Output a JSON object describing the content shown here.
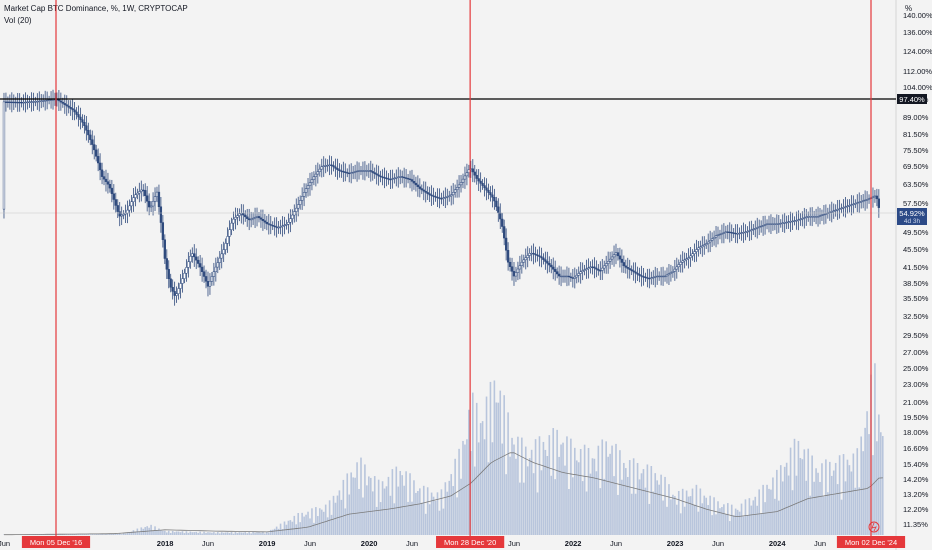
{
  "header": {
    "title": "Market Cap BTC Dominance, %, 1W, CRYPTOCAP",
    "indicator": "Vol (20)",
    "scale_unit": "%"
  },
  "colors": {
    "background": "#f3f3f3",
    "candle": "#2f4a7d",
    "volume": "#b8c5dc",
    "volume_ma": "#7a7a7a",
    "marker_line": "#e5383b",
    "level_line": "#000000",
    "current_price": "#2c4a87"
  },
  "chart_data": {
    "type": "line",
    "title": "Market Cap BTC Dominance, %, 1W, CRYPTOCAP",
    "y_scale": "log",
    "y_ticks": [
      "140.00%",
      "136.00%",
      "124.00%",
      "112.00%",
      "104.00%",
      "97.40%",
      "89.00%",
      "81.50%",
      "75.50%",
      "69.50%",
      "63.50%",
      "57.50%",
      "49.50%",
      "45.50%",
      "41.50%",
      "38.50%",
      "35.50%",
      "32.50%",
      "29.50%",
      "27.00%",
      "25.00%",
      "23.00%",
      "21.00%",
      "19.50%",
      "18.00%",
      "16.60%",
      "15.40%",
      "14.20%",
      "13.20%",
      "12.20%",
      "11.35%"
    ],
    "x_ticks": [
      "Jun",
      "2018",
      "Jun",
      "2019",
      "Jun",
      "2020",
      "Jun",
      "Jun",
      "2022",
      "Jun",
      "2023",
      "Jun",
      "2024",
      "Jun"
    ],
    "x_tick_dates": [
      2016.42,
      2018.0,
      2018.42,
      2019.0,
      2019.42,
      2020.0,
      2020.42,
      2021.42,
      2022.0,
      2022.42,
      2023.0,
      2023.42,
      2024.0,
      2024.42
    ],
    "x_range": [
      2016.42,
      2025.05
    ],
    "series": [
      {
        "values": [
          [
            2016.42,
            96.0
          ],
          [
            2016.6,
            95.8
          ],
          [
            2016.75,
            96.3
          ],
          [
            2016.93,
            97.4
          ],
          [
            2017.1,
            92
          ],
          [
            2017.2,
            86
          ],
          [
            2017.3,
            76
          ],
          [
            2017.38,
            66
          ],
          [
            2017.45,
            63
          ],
          [
            2017.55,
            54
          ],
          [
            2017.62,
            55
          ],
          [
            2017.7,
            60
          ],
          [
            2017.78,
            62
          ],
          [
            2017.85,
            56
          ],
          [
            2017.92,
            61
          ],
          [
            2018.0,
            43
          ],
          [
            2018.05,
            38
          ],
          [
            2018.1,
            36
          ],
          [
            2018.18,
            40
          ],
          [
            2018.26,
            45
          ],
          [
            2018.34,
            42
          ],
          [
            2018.42,
            38
          ],
          [
            2018.5,
            42
          ],
          [
            2018.58,
            46
          ],
          [
            2018.66,
            53
          ],
          [
            2018.74,
            55
          ],
          [
            2018.82,
            53
          ],
          [
            2018.9,
            54
          ],
          [
            2019.0,
            52
          ],
          [
            2019.1,
            51
          ],
          [
            2019.2,
            52
          ],
          [
            2019.3,
            57
          ],
          [
            2019.38,
            62
          ],
          [
            2019.46,
            66
          ],
          [
            2019.54,
            69.5
          ],
          [
            2019.62,
            70
          ],
          [
            2019.7,
            68
          ],
          [
            2019.8,
            67
          ],
          [
            2019.9,
            68
          ],
          [
            2020.0,
            68
          ],
          [
            2020.1,
            66
          ],
          [
            2020.2,
            65
          ],
          [
            2020.3,
            66
          ],
          [
            2020.4,
            65
          ],
          [
            2020.5,
            62
          ],
          [
            2020.6,
            60
          ],
          [
            2020.7,
            59
          ],
          [
            2020.8,
            60
          ],
          [
            2020.9,
            64
          ],
          [
            2020.99,
            69
          ],
          [
            2021.06,
            65
          ],
          [
            2021.14,
            62
          ],
          [
            2021.22,
            59
          ],
          [
            2021.3,
            52
          ],
          [
            2021.36,
            43
          ],
          [
            2021.42,
            40
          ],
          [
            2021.5,
            43
          ],
          [
            2021.58,
            45
          ],
          [
            2021.68,
            44
          ],
          [
            2021.78,
            42
          ],
          [
            2021.86,
            40
          ],
          [
            2021.94,
            40
          ],
          [
            2022.0,
            39.5
          ],
          [
            2022.08,
            41
          ],
          [
            2022.18,
            42
          ],
          [
            2022.26,
            41
          ],
          [
            2022.34,
            43
          ],
          [
            2022.42,
            45
          ],
          [
            2022.5,
            42
          ],
          [
            2022.58,
            41
          ],
          [
            2022.66,
            40
          ],
          [
            2022.74,
            39.5
          ],
          [
            2022.82,
            40
          ],
          [
            2022.9,
            40
          ],
          [
            2022.98,
            41
          ],
          [
            2023.06,
            43
          ],
          [
            2023.14,
            44
          ],
          [
            2023.22,
            46
          ],
          [
            2023.3,
            47
          ],
          [
            2023.4,
            49
          ],
          [
            2023.5,
            50
          ],
          [
            2023.6,
            49.5
          ],
          [
            2023.7,
            50
          ],
          [
            2023.8,
            51
          ],
          [
            2023.9,
            52
          ],
          [
            2024.0,
            52
          ],
          [
            2024.1,
            52.5
          ],
          [
            2024.2,
            53
          ],
          [
            2024.3,
            54
          ],
          [
            2024.4,
            54
          ],
          [
            2024.5,
            55
          ],
          [
            2024.6,
            56
          ],
          [
            2024.7,
            57
          ],
          [
            2024.8,
            58
          ],
          [
            2024.9,
            59
          ],
          [
            2024.97,
            60
          ],
          [
            2025.0,
            56
          ]
        ]
      }
    ],
    "volume": {
      "y_ticks_note": "volume pane shares right scale region",
      "values": [
        [
          2016.42,
          0.05
        ],
        [
          2016.8,
          0.08
        ],
        [
          2017.2,
          0.15
        ],
        [
          2017.6,
          0.5
        ],
        [
          2017.85,
          3
        ],
        [
          2018.0,
          1.2
        ],
        [
          2018.5,
          0.8
        ],
        [
          2019.0,
          0.9
        ],
        [
          2019.3,
          6
        ],
        [
          2019.6,
          9
        ],
        [
          2019.9,
          22
        ],
        [
          2020.1,
          15
        ],
        [
          2020.3,
          20
        ],
        [
          2020.5,
          14
        ],
        [
          2020.7,
          12
        ],
        [
          2020.9,
          25
        ],
        [
          2021.0,
          40
        ],
        [
          2021.1,
          35
        ],
        [
          2021.25,
          47
        ],
        [
          2021.4,
          30
        ],
        [
          2021.55,
          25
        ],
        [
          2021.7,
          28
        ],
        [
          2021.85,
          30
        ],
        [
          2022.0,
          26
        ],
        [
          2022.2,
          24
        ],
        [
          2022.35,
          28
        ],
        [
          2022.5,
          22
        ],
        [
          2022.7,
          20
        ],
        [
          2022.85,
          18
        ],
        [
          2023.0,
          12
        ],
        [
          2023.2,
          14
        ],
        [
          2023.4,
          10
        ],
        [
          2023.6,
          8
        ],
        [
          2023.8,
          12
        ],
        [
          2024.0,
          18
        ],
        [
          2024.2,
          28
        ],
        [
          2024.4,
          20
        ],
        [
          2024.6,
          22
        ],
        [
          2024.8,
          24
        ],
        [
          2024.95,
          50
        ],
        [
          2025.0,
          35
        ]
      ],
      "ma_values": [
        [
          2016.42,
          0.1
        ],
        [
          2017.5,
          0.5
        ],
        [
          2018.0,
          2
        ],
        [
          2018.5,
          1.5
        ],
        [
          2019.0,
          1.2
        ],
        [
          2019.4,
          3
        ],
        [
          2019.8,
          8
        ],
        [
          2020.2,
          10
        ],
        [
          2020.5,
          12
        ],
        [
          2020.8,
          15
        ],
        [
          2021.0,
          20
        ],
        [
          2021.2,
          28
        ],
        [
          2021.4,
          32
        ],
        [
          2021.6,
          28
        ],
        [
          2021.9,
          24
        ],
        [
          2022.2,
          22
        ],
        [
          2022.6,
          18
        ],
        [
          2023.0,
          14
        ],
        [
          2023.3,
          10
        ],
        [
          2023.6,
          7
        ],
        [
          2024.0,
          9
        ],
        [
          2024.3,
          14
        ],
        [
          2024.6,
          16
        ],
        [
          2024.9,
          18
        ],
        [
          2025.0,
          22
        ]
      ]
    },
    "level_line": 97.4,
    "current_price": "54.92%",
    "current_countdown": "4d 3h",
    "markers": [
      {
        "date": 2016.93,
        "label": "Mon 05 Dec '16"
      },
      {
        "date": 2020.99,
        "label": "Mon 28 Dec '20"
      },
      {
        "date": 2024.92,
        "label": "Mon 02 Dec '24"
      }
    ]
  }
}
